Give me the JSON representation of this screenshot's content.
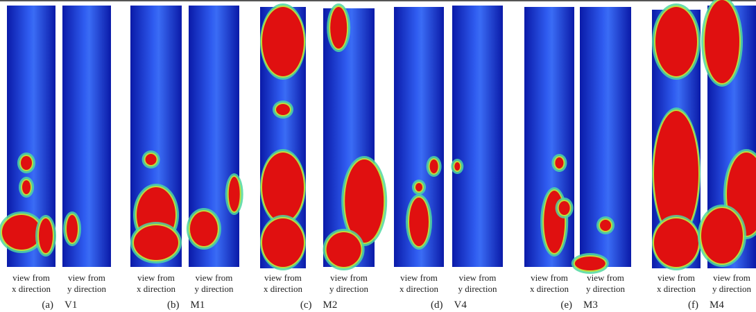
{
  "panels": [
    {
      "label": "(a)",
      "name": "V1",
      "views": [
        {
          "line1": "view from",
          "line2": "x direction"
        },
        {
          "line1": "view from",
          "line2": "y direction"
        }
      ]
    },
    {
      "label": "(b)",
      "name": "M1",
      "views": [
        {
          "line1": "view from",
          "line2": "x direction"
        },
        {
          "line1": "view from",
          "line2": "y direction"
        }
      ]
    },
    {
      "label": "(c)",
      "name": "M2",
      "views": [
        {
          "line1": "view from",
          "line2": "x direction"
        },
        {
          "line1": "view from",
          "line2": "y direction"
        }
      ]
    },
    {
      "label": "(d)",
      "name": "V4",
      "views": [
        {
          "line1": "view from",
          "line2": "x direction"
        },
        {
          "line1": "view from",
          "line2": "y direction"
        }
      ]
    },
    {
      "label": "(e)",
      "name": "M3",
      "views": [
        {
          "line1": "view from",
          "line2": "x direction"
        },
        {
          "line1": "view from",
          "line2": "y direction"
        }
      ]
    },
    {
      "label": "(f)",
      "name": "M4",
      "views": [
        {
          "line1": "view from",
          "line2": "x direction"
        },
        {
          "line1": "view from",
          "line2": "y direction"
        }
      ]
    }
  ]
}
